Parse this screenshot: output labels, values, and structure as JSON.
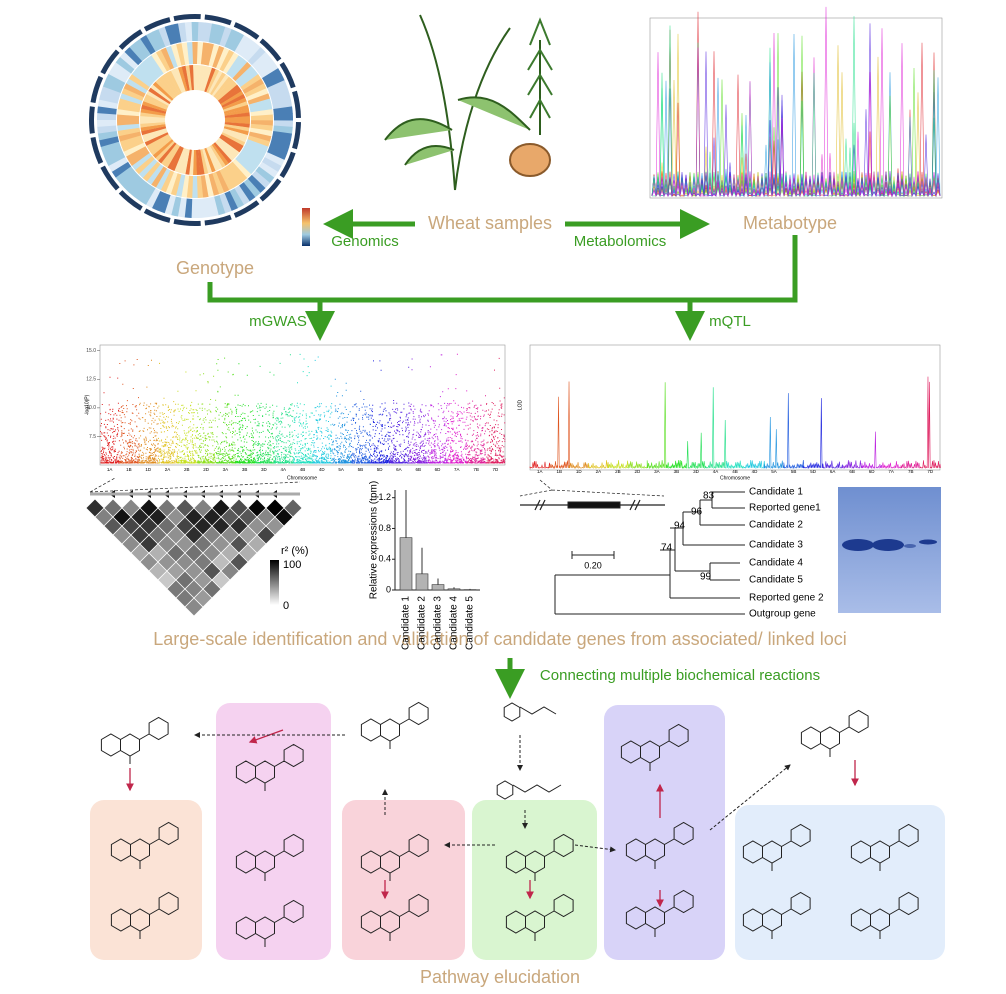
{
  "labels": {
    "genotype": "Genotype",
    "wheat_samples": "Wheat samples",
    "metabotype": "Metabotype",
    "genomics": "Genomics",
    "metabolomics": "Metabolomics",
    "mgwas": "mGWAS",
    "mqtl": "mQTL",
    "identification": "Large-scale identification and validation of candidate genes from associated/ linked loci",
    "connecting": "Connecting multiple biochemical reactions",
    "pathway": "Pathway elucidation"
  },
  "chromosomes": [
    "1A",
    "1B",
    "1D",
    "2A",
    "2B",
    "2D",
    "3A",
    "3B",
    "3D",
    "4A",
    "4B",
    "4D",
    "5A",
    "5B",
    "5D",
    "6A",
    "6B",
    "6D",
    "7A",
    "7B",
    "7D"
  ],
  "manhattan": {
    "y_label": "-log10(P)",
    "x_label": "Chromosome",
    "ylim": [
      5,
      15.5
    ],
    "yticks": [
      {
        "value": 7.5,
        "label": "7.5"
      },
      {
        "value": 10,
        "label": "10.0"
      },
      {
        "value": 12.5,
        "label": "12.5"
      },
      {
        "value": 15,
        "label": "15.0"
      }
    ]
  },
  "qtl": {
    "y_label": "LOD",
    "x_label": "Chromosome"
  },
  "ld_legend": {
    "title": "r² (%)",
    "max": 100,
    "min": 0
  },
  "expression_chart": {
    "type": "bar",
    "y_label": "Relative expressions (tpm)",
    "categories": [
      "Candidate 1",
      "Candidate 2",
      "Candidate 3",
      "Candidate 4",
      "Candidate 5"
    ],
    "values": [
      0.68,
      0.21,
      0.07,
      0.015,
      0.005
    ],
    "errors": [
      0.62,
      0.34,
      0.08,
      0.02,
      0.01
    ],
    "color": "#b3b3b3",
    "ylim": [
      0,
      1.3
    ],
    "yticks": [
      0,
      0.4,
      0.8,
      1.2
    ]
  },
  "tree": {
    "leaves": [
      "Candidate 1",
      "Reported gene1",
      "Candidate 2",
      "Candidate 3",
      "Candidate 4",
      "Candidate 5",
      "Reported gene 2",
      "Outgroup gene"
    ],
    "bootstrap": [
      83,
      96,
      94,
      74,
      99
    ],
    "scale": "0.20"
  }
}
